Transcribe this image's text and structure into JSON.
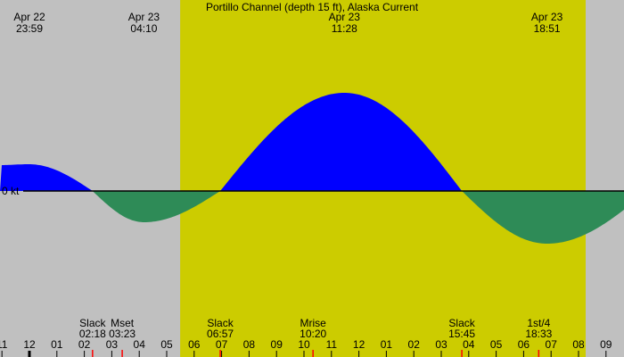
{
  "chart_data": {
    "type": "area",
    "title": "Portillo Channel (depth 15 ft), Alaska Current",
    "zero_label": "0 kt",
    "ylabel": "kt",
    "x_unit": "hours from Apr 23 00:00",
    "xlim": [
      -1.07,
      21.66
    ],
    "daylight": {
      "start": 5.49,
      "end": 20.26
    },
    "colors": {
      "background": "#c0c0c0",
      "daylight": "#cccc00",
      "flood": "#0000ff",
      "ebb": "#2e8b57",
      "event_tick": "#ff0000"
    },
    "series": [
      {
        "name": "current (estimated kt)",
        "points": [
          [
            -1.07,
            0.29
          ],
          [
            -0.02,
            0.3
          ],
          [
            2.3,
            0
          ],
          [
            4.17,
            -0.35
          ],
          [
            6.95,
            0
          ],
          [
            11.47,
            1.1
          ],
          [
            15.75,
            0
          ],
          [
            18.85,
            -0.59
          ],
          [
            22.5,
            0
          ]
        ]
      }
    ],
    "peak_labels": [
      {
        "date": "Apr 22",
        "time": "23:59",
        "t": -0.02
      },
      {
        "date": "Apr 23",
        "time": "04:10",
        "t": 4.17
      },
      {
        "date": "Apr 23",
        "time": "11:28",
        "t": 11.47
      },
      {
        "date": "Apr 23",
        "time": "18:51",
        "t": 18.85
      }
    ],
    "events": [
      {
        "name": "Slack",
        "time": "02:18",
        "t": 2.3
      },
      {
        "name": "Mset",
        "time": "03:23",
        "t": 3.38
      },
      {
        "name": "Slack",
        "time": "06:57",
        "t": 6.95
      },
      {
        "name": "Mrise",
        "time": "10:20",
        "t": 10.33
      },
      {
        "name": "Slack",
        "time": "15:45",
        "t": 15.75
      },
      {
        "name": "1st/4",
        "time": "18:33",
        "t": 18.55
      }
    ],
    "hour_ticks": [
      {
        "label": "11",
        "t": -1
      },
      {
        "label": "12",
        "t": 0
      },
      {
        "label": "01",
        "t": 1
      },
      {
        "label": "02",
        "t": 2
      },
      {
        "label": "03",
        "t": 3
      },
      {
        "label": "04",
        "t": 4
      },
      {
        "label": "05",
        "t": 5
      },
      {
        "label": "06",
        "t": 6
      },
      {
        "label": "07",
        "t": 7
      },
      {
        "label": "08",
        "t": 8
      },
      {
        "label": "09",
        "t": 9
      },
      {
        "label": "10",
        "t": 10
      },
      {
        "label": "11",
        "t": 11
      },
      {
        "label": "12",
        "t": 12
      },
      {
        "label": "01",
        "t": 13
      },
      {
        "label": "02",
        "t": 14
      },
      {
        "label": "03",
        "t": 15
      },
      {
        "label": "04",
        "t": 16
      },
      {
        "label": "05",
        "t": 17
      },
      {
        "label": "06",
        "t": 18
      },
      {
        "label": "07",
        "t": 19
      },
      {
        "label": "08",
        "t": 20
      },
      {
        "label": "09",
        "t": 21
      }
    ]
  }
}
